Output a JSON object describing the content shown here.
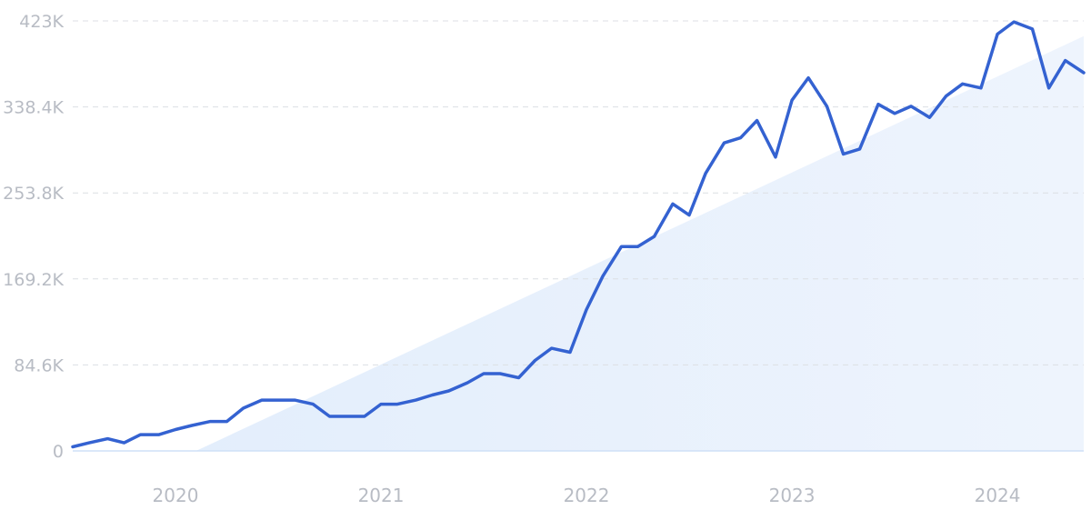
{
  "chart_data": {
    "type": "line",
    "title": "",
    "xlabel": "",
    "ylabel": "",
    "y_ticks": [
      "0",
      "84.6K",
      "169.2K",
      "253.8K",
      "338.4K",
      "423K"
    ],
    "y_tick_values": [
      0,
      84600,
      169200,
      253800,
      338400,
      423000
    ],
    "x_ticks": [
      "2020",
      "2021",
      "2022",
      "2023",
      "2024"
    ],
    "x_tick_values": [
      2020.0,
      2021.0,
      2022.0,
      2023.0,
      2024.0
    ],
    "xlim": [
      2019.5,
      2024.42
    ],
    "ylim": [
      0,
      423000
    ],
    "grid": true,
    "colors": {
      "line": "#3462d1",
      "trend_fill": "#e3eefc",
      "grid": "#dcdfe4",
      "ticks": "#b8bcc4"
    },
    "trend": {
      "x": [
        2020.1,
        2024.42
      ],
      "y": [
        0,
        408000
      ]
    },
    "series": [
      {
        "name": "",
        "x": [
          2019.5,
          2019.58,
          2019.67,
          2019.75,
          2019.83,
          2019.92,
          2020.0,
          2020.08,
          2020.17,
          2020.25,
          2020.33,
          2020.42,
          2020.5,
          2020.58,
          2020.67,
          2020.75,
          2020.83,
          2020.92,
          2021.0,
          2021.08,
          2021.17,
          2021.25,
          2021.33,
          2021.42,
          2021.5,
          2021.58,
          2021.67,
          2021.75,
          2021.83,
          2021.92,
          2022.0,
          2022.08,
          2022.17,
          2022.25,
          2022.33,
          2022.42,
          2022.5,
          2022.58,
          2022.67,
          2022.75,
          2022.83,
          2022.92,
          2023.0,
          2023.08,
          2023.17,
          2023.25,
          2023.33,
          2023.42,
          2023.5,
          2023.58,
          2023.67,
          2023.75,
          2023.83,
          2023.92,
          2024.0,
          2024.08,
          2024.17,
          2024.25,
          2024.33,
          2024.42
        ],
        "y": [
          4000,
          8000,
          12000,
          8000,
          16000,
          16000,
          21000,
          25000,
          29000,
          29000,
          42000,
          50000,
          50000,
          50000,
          46000,
          34000,
          34000,
          34000,
          46000,
          46000,
          50000,
          55000,
          59000,
          67000,
          76000,
          76000,
          72000,
          89000,
          101000,
          97000,
          139000,
          172000,
          201000,
          201000,
          211000,
          243000,
          232000,
          273000,
          303000,
          308000,
          325000,
          289000,
          345000,
          367000,
          339000,
          292000,
          297000,
          341000,
          332000,
          339000,
          328000,
          349000,
          361000,
          357000,
          410000,
          422000,
          415000,
          357000,
          384000,
          372000
        ]
      }
    ]
  }
}
